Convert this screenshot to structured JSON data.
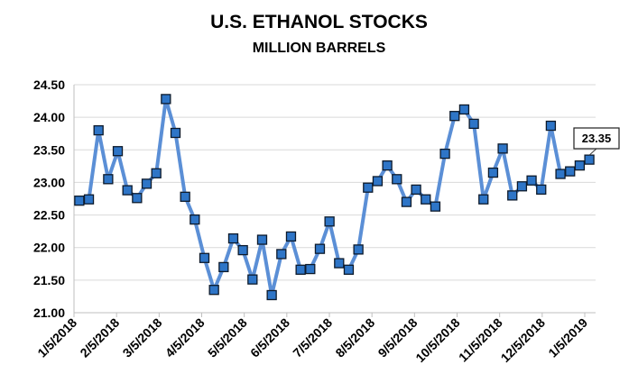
{
  "chart_data": {
    "type": "line",
    "title": "U.S. ETHANOL STOCKS",
    "subtitle": "MILLION BARRELS",
    "xlabel": "",
    "ylabel": "",
    "ylim": [
      21.0,
      24.5
    ],
    "y_ticks": [
      "21.00",
      "21.50",
      "22.00",
      "22.50",
      "23.00",
      "23.50",
      "24.00",
      "24.50"
    ],
    "x_tick_labels": [
      "1/5/2018",
      "2/5/2018",
      "3/5/2018",
      "4/5/2018",
      "5/5/2018",
      "6/5/2018",
      "7/5/2018",
      "8/5/2018",
      "9/5/2018",
      "10/5/2018",
      "11/5/2018",
      "12/5/2018",
      "1/5/2019"
    ],
    "grid": "horizontal",
    "legend": "none",
    "line_color": "#5b8fd6",
    "marker_color": "#2e75c7",
    "series": [
      {
        "values": [
          22.72,
          22.74,
          23.8,
          23.05,
          23.48,
          22.88,
          22.76,
          22.98,
          23.14,
          24.28,
          23.76,
          22.78,
          22.43,
          21.84,
          21.35,
          21.7,
          22.14,
          21.96,
          21.51,
          22.12,
          21.27,
          21.9,
          22.17,
          21.66,
          21.67,
          21.98,
          22.4,
          21.76,
          21.66,
          21.97,
          22.92,
          23.02,
          23.26,
          23.05,
          22.7,
          22.89,
          22.74,
          22.63,
          23.44,
          24.02,
          24.12,
          23.9,
          22.74,
          23.15,
          23.52,
          22.8,
          22.94,
          23.03,
          22.89,
          23.87,
          23.13,
          23.17,
          23.26,
          23.35
        ]
      }
    ],
    "callout": "23.35"
  }
}
